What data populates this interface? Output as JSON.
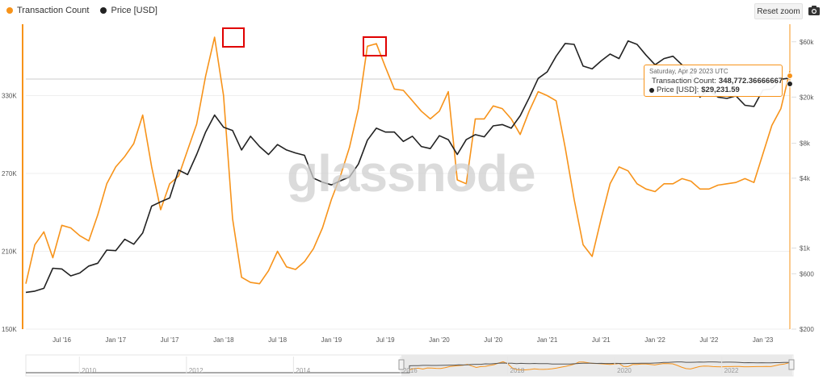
{
  "legend": [
    {
      "label": "Transaction Count",
      "color": "#f7931a"
    },
    {
      "label": "Price [USD]",
      "color": "#222222"
    }
  ],
  "toolbar": {
    "reset_label": "Reset zoom",
    "camera_icon": "camera-icon"
  },
  "watermark": "glassnode",
  "tooltip": {
    "date": "Saturday, Apr 29 2023 UTC",
    "tx_label": "Transaction Count:",
    "tx_value": "348,772.36666667",
    "price_label": "Price [USD]:",
    "price_value": "$29,231.59"
  },
  "chart_data": {
    "type": "line",
    "left_axis": {
      "ticks": [
        "150K",
        "210K",
        "270K",
        "330K"
      ],
      "range": [
        150000,
        385000
      ]
    },
    "right_axis": {
      "scale": "log",
      "ticks": [
        "$200",
        "$600",
        "$1k",
        "$4k",
        "$8k",
        "$20k",
        "$60k"
      ],
      "range": [
        200,
        85000
      ]
    },
    "x_ticks": [
      "Jul '16",
      "Jan '17",
      "Jul '17",
      "Jan '18",
      "Jul '18",
      "Jan '19",
      "Jul '19",
      "Jan '20",
      "Jul '20",
      "Jan '21",
      "Jul '21",
      "Jan '22",
      "Jul '22",
      "Jan '23"
    ],
    "navigator_ticks": [
      "2010",
      "2012",
      "2014",
      "2016",
      "2018",
      "2020",
      "2022"
    ],
    "series": [
      {
        "name": "Transaction Count",
        "color": "#f7931a",
        "x": [
          "2016-03",
          "2016-04",
          "2016-05",
          "2016-06",
          "2016-07",
          "2016-08",
          "2016-09",
          "2016-10",
          "2016-11",
          "2016-12",
          "2017-01",
          "2017-02",
          "2017-03",
          "2017-04",
          "2017-05",
          "2017-06",
          "2017-07",
          "2017-08",
          "2017-09",
          "2017-10",
          "2017-11",
          "2017-12",
          "2018-01",
          "2018-02",
          "2018-03",
          "2018-04",
          "2018-05",
          "2018-06",
          "2018-07",
          "2018-08",
          "2018-09",
          "2018-10",
          "2018-11",
          "2018-12",
          "2019-01",
          "2019-02",
          "2019-03",
          "2019-04",
          "2019-05",
          "2019-06",
          "2019-07",
          "2019-08",
          "2019-09",
          "2019-10",
          "2019-11",
          "2019-12",
          "2020-01",
          "2020-02",
          "2020-03",
          "2020-04",
          "2020-05",
          "2020-06",
          "2020-07",
          "2020-08",
          "2020-09",
          "2020-10",
          "2020-11",
          "2020-12",
          "2021-01",
          "2021-02",
          "2021-03",
          "2021-04",
          "2021-05",
          "2021-06",
          "2021-07",
          "2021-08",
          "2021-09",
          "2021-10",
          "2021-11",
          "2021-12",
          "2022-01",
          "2022-02",
          "2022-03",
          "2022-04",
          "2022-05",
          "2022-06",
          "2022-07",
          "2022-08",
          "2022-09",
          "2022-10",
          "2022-11",
          "2022-12",
          "2023-01",
          "2023-02",
          "2023-03",
          "2023-04"
        ],
        "values": [
          185000,
          215000,
          225000,
          205000,
          230000,
          228000,
          222000,
          218000,
          238000,
          262000,
          275000,
          283000,
          293000,
          315000,
          275000,
          242000,
          262000,
          268000,
          288000,
          308000,
          345000,
          375000,
          330000,
          235000,
          190000,
          186000,
          185000,
          195000,
          210000,
          198000,
          196000,
          202000,
          212000,
          228000,
          250000,
          268000,
          290000,
          320000,
          368000,
          370000,
          352000,
          335000,
          334000,
          326000,
          318000,
          312000,
          318000,
          333000,
          265000,
          262000,
          312000,
          312000,
          322000,
          320000,
          312000,
          300000,
          318000,
          333000,
          330000,
          326000,
          290000,
          250000,
          215000,
          206000,
          235000,
          262000,
          275000,
          272000,
          262000,
          258000,
          256000,
          262000,
          262000,
          266000,
          264000,
          258000,
          258000,
          261000,
          262000,
          263000,
          266000,
          263000,
          285000,
          307000,
          320000,
          348772
        ]
      },
      {
        "name": "Price [USD]",
        "color": "#222222",
        "x": [
          "2016-03",
          "2016-04",
          "2016-05",
          "2016-06",
          "2016-07",
          "2016-08",
          "2016-09",
          "2016-10",
          "2016-11",
          "2016-12",
          "2017-01",
          "2017-02",
          "2017-03",
          "2017-04",
          "2017-05",
          "2017-06",
          "2017-07",
          "2017-08",
          "2017-09",
          "2017-10",
          "2017-11",
          "2017-12",
          "2018-01",
          "2018-02",
          "2018-03",
          "2018-04",
          "2018-05",
          "2018-06",
          "2018-07",
          "2018-08",
          "2018-09",
          "2018-10",
          "2018-11",
          "2018-12",
          "2019-01",
          "2019-02",
          "2019-03",
          "2019-04",
          "2019-05",
          "2019-06",
          "2019-07",
          "2019-08",
          "2019-09",
          "2019-10",
          "2019-11",
          "2019-12",
          "2020-01",
          "2020-02",
          "2020-03",
          "2020-04",
          "2020-05",
          "2020-06",
          "2020-07",
          "2020-08",
          "2020-09",
          "2020-10",
          "2020-11",
          "2020-12",
          "2021-01",
          "2021-02",
          "2021-03",
          "2021-04",
          "2021-05",
          "2021-06",
          "2021-07",
          "2021-08",
          "2021-09",
          "2021-10",
          "2021-11",
          "2021-12",
          "2022-01",
          "2022-02",
          "2022-03",
          "2022-04",
          "2022-05",
          "2022-06",
          "2022-07",
          "2022-08",
          "2022-09",
          "2022-10",
          "2022-11",
          "2022-12",
          "2023-01",
          "2023-02",
          "2023-03",
          "2023-04"
        ],
        "values": [
          415,
          425,
          450,
          670,
          660,
          575,
          610,
          700,
          740,
          960,
          950,
          1190,
          1080,
          1350,
          2300,
          2500,
          2700,
          4700,
          4300,
          6400,
          10000,
          14000,
          11000,
          10300,
          7000,
          9200,
          7500,
          6400,
          7800,
          7000,
          6600,
          6300,
          4000,
          3700,
          3500,
          3800,
          4100,
          5300,
          8500,
          10800,
          10000,
          10000,
          8300,
          9200,
          7500,
          7200,
          9300,
          8600,
          6400,
          8600,
          9500,
          9100,
          11300,
          11600,
          10800,
          13800,
          19700,
          29000,
          33000,
          45000,
          58000,
          57000,
          37000,
          35000,
          41000,
          47000,
          43000,
          61000,
          57000,
          46000,
          38000,
          43000,
          45000,
          38000,
          31000,
          20000,
          23000,
          20000,
          19500,
          20500,
          17000,
          16600,
          23000,
          23500,
          28500,
          29231
        ]
      }
    ],
    "annotations": [
      "highlight box at Jan '18 peak",
      "highlight box at Jun '19 peak"
    ]
  }
}
